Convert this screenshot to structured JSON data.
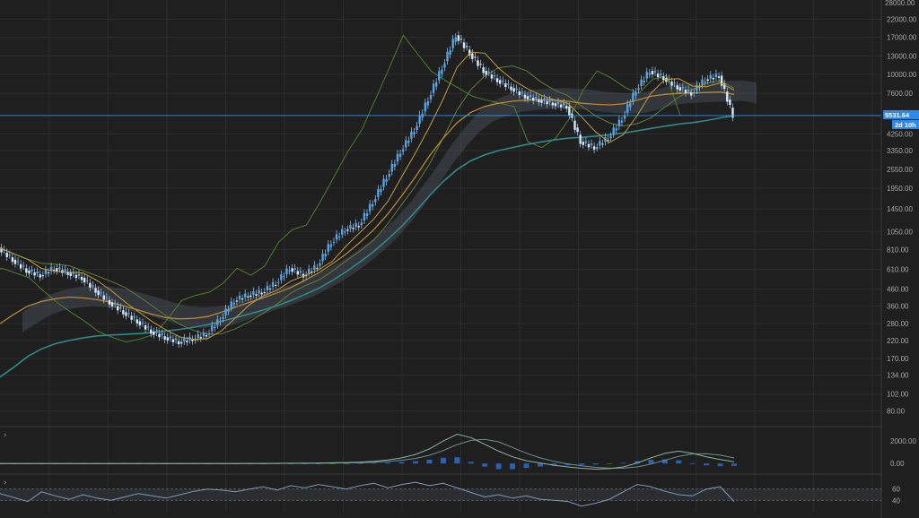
{
  "colors": {
    "background": "#1f1f1f",
    "grid": "#2e2e2e",
    "candle": "#4ea6f0",
    "candle_wick": "#9fd0ff",
    "ma_long": "#2f8a8a",
    "ma_mid": "#b5893a",
    "tenkan": "#c0a040",
    "kijun": "#5f7f3a",
    "lagging": "#4f7f2a",
    "cloud": "#5a6070",
    "price_line": "#3d8fd8",
    "macd_line": "#8ab4a0",
    "signal_line": "#6f8f8f",
    "histogram": "#2a6fd0",
    "rsi_line": "#7f9ab5",
    "rsi_band": "#3a3f47"
  },
  "chart_data": {
    "type": "line",
    "title": "",
    "xlabel": "",
    "ylabel": "",
    "log_scale": true,
    "grid": true,
    "price_axis": {
      "ticks": [
        "22000.00",
        "17000.00",
        "13000.00",
        "10000.00",
        "7600.00",
        "4250.00",
        "3350.00",
        "2550.00",
        "1950.00",
        "1450.00",
        "1050.00",
        "810.00",
        "610.00",
        "460.00",
        "360.00",
        "280.00",
        "220.00",
        "170.00",
        "134.00",
        "102.00",
        "80.00"
      ],
      "tick_values": [
        22000,
        17000,
        13000,
        10000,
        7600,
        4250,
        3350,
        2550,
        1950,
        1450,
        1050,
        810,
        610,
        460,
        360,
        280,
        220,
        170,
        134,
        102,
        80
      ],
      "top_partial_label": "28000.00",
      "range": [
        64,
        29000
      ]
    },
    "current_price": {
      "label": "5531.64",
      "value": 5531.64,
      "countdown": "2d 10h"
    },
    "price_series": [
      830,
      700,
      600,
      560,
      620,
      580,
      540,
      450,
      380,
      330,
      290,
      250,
      230,
      215,
      225,
      240,
      300,
      390,
      420,
      440,
      500,
      620,
      560,
      640,
      900,
      1080,
      1150,
      1600,
      2300,
      3300,
      4500,
      7000,
      11000,
      17500,
      13500,
      10500,
      9200,
      8200,
      7300,
      6900,
      6600,
      6300,
      3800,
      3500,
      4000,
      5300,
      8000,
      10500,
      9500,
      8300,
      7600,
      9300,
      9800,
      5531.64
    ],
    "ma_long_series": [
      130,
      150,
      175,
      195,
      210,
      220,
      228,
      235,
      238,
      240,
      243,
      247,
      252,
      258,
      266,
      276,
      290,
      305,
      322,
      340,
      362,
      390,
      425,
      465,
      520,
      590,
      680,
      790,
      940,
      1130,
      1400,
      1750,
      2150,
      2550,
      2900,
      3150,
      3350,
      3500,
      3650,
      3780,
      3900,
      4000,
      4050,
      4120,
      4200,
      4300,
      4450,
      4600,
      4750,
      4900,
      5000,
      5150,
      5350,
      5530
    ],
    "ma_mid_series": [
      280,
      320,
      360,
      385,
      400,
      410,
      405,
      395,
      380,
      360,
      340,
      320,
      305,
      300,
      302,
      310,
      330,
      355,
      380,
      405,
      435,
      470,
      520,
      580,
      660,
      760,
      900,
      1080,
      1350,
      1750,
      2300,
      3100,
      4000,
      5000,
      5800,
      6300,
      6600,
      6800,
      6900,
      6950,
      6900,
      6800,
      6600,
      6500,
      6450,
      6550,
      6900,
      7300,
      7500,
      7600,
      7650,
      7700,
      7750,
      7500
    ],
    "macd_axis": {
      "ticks": [
        "2000.00",
        "0.00"
      ],
      "tick_values": [
        2000,
        0
      ]
    },
    "macd_series": [
      0,
      0,
      0,
      0,
      0,
      0,
      0,
      0,
      0,
      0,
      0,
      0,
      0,
      0,
      0,
      0,
      0,
      0,
      5,
      10,
      15,
      20,
      30,
      40,
      60,
      90,
      130,
      200,
      320,
      500,
      800,
      1300,
      2000,
      2600,
      2300,
      1700,
      1100,
      600,
      250,
      50,
      -150,
      -300,
      -420,
      -500,
      -450,
      -300,
      50,
      500,
      900,
      1100,
      900,
      600,
      350,
      150
    ],
    "rsi_axis": {
      "ticks": [
        "60",
        "40"
      ],
      "tick_values": [
        60,
        40
      ]
    },
    "rsi_series": [
      52,
      45,
      38,
      55,
      48,
      42,
      50,
      44,
      40,
      46,
      52,
      48,
      44,
      50,
      56,
      60,
      58,
      55,
      60,
      64,
      58,
      66,
      62,
      68,
      64,
      60,
      66,
      70,
      62,
      68,
      72,
      66,
      70,
      62,
      54,
      46,
      50,
      44,
      48,
      42,
      40,
      38,
      30,
      35,
      42,
      55,
      68,
      64,
      56,
      50,
      48,
      60,
      64,
      38
    ]
  },
  "panels": {
    "macd_toggle": "›",
    "rsi_toggle": "›"
  }
}
